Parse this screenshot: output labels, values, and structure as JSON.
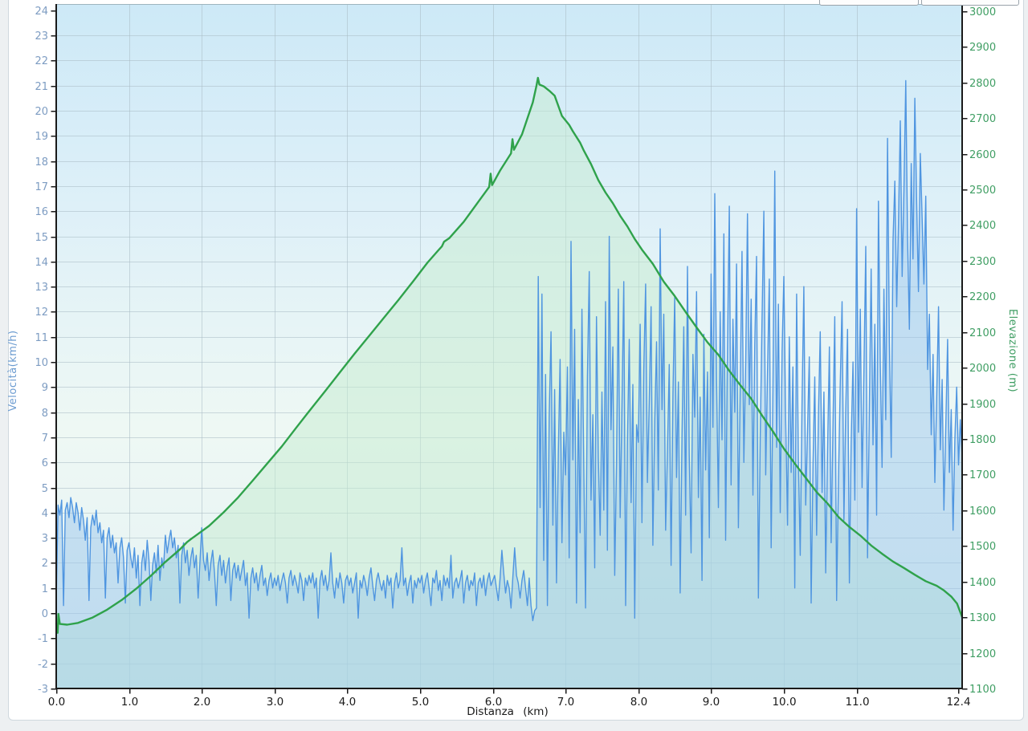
{
  "page": {
    "background": "#edf0f2",
    "panel_background": "#ffffff",
    "panel_border": "#cfd8de"
  },
  "toolbar": {
    "cropped_buttons": [
      {
        "name": "cropped-toolbar-button-1"
      },
      {
        "name": "cropped-toolbar-button-2"
      }
    ]
  },
  "chart_data": {
    "type": "line",
    "title": "",
    "x_axis": {
      "title": "Distanza (km)",
      "range": [
        0,
        12.45
      ],
      "ticks": [
        0,
        1,
        2,
        3,
        4,
        5,
        6,
        7,
        8,
        9,
        10,
        11,
        12.4
      ],
      "tick_labels": [
        "0.0",
        "1.0",
        "2.0",
        "3.0",
        "4.0",
        "5.0",
        "6.0",
        "7.0",
        "8.0",
        "9.0",
        "10.0",
        "11.0",
        "12.4"
      ],
      "tick_color": "#1a1a1a",
      "title_color": "#1a1a1a"
    },
    "left_axis": {
      "title": "Velocità(km/h)",
      "range": [
        -3,
        24.25
      ],
      "ticks": [
        -3,
        -2,
        -1,
        0,
        1,
        2,
        3,
        4,
        5,
        6,
        7,
        8,
        9,
        10,
        11,
        12,
        13,
        14,
        15,
        16,
        17,
        18,
        19,
        20,
        21,
        22,
        23,
        24
      ],
      "tick_color": "#7d9cc2",
      "title_color": "#6b9bd0"
    },
    "right_axis": {
      "title": "Elevazione (m)",
      "range": [
        1100,
        3020
      ],
      "ticks": [
        1100,
        1200,
        1300,
        1400,
        1500,
        1600,
        1700,
        1800,
        1900,
        2000,
        2100,
        2200,
        2300,
        2400,
        2500,
        2600,
        2700,
        2800,
        2900,
        3000
      ],
      "tick_color": "#3f9e63",
      "title_color": "#3f9e63"
    },
    "grid": {
      "on": true,
      "color": "#a9bcc4",
      "opacity": 0.55,
      "top_edge_color": "#9db4be"
    },
    "axis_line_color": "#1a1a1a",
    "plot_bg_gradient": [
      "#cde9f7",
      "#def0f8",
      "#eef8f4",
      "#e3f1f3"
    ],
    "legend": {
      "visible": false
    },
    "series": [
      {
        "name": "Elevazione",
        "axis": "right",
        "color": "#2fa24b",
        "fill": "rgba(198,236,208,0.5)",
        "width": 2.4,
        "points": [
          [
            0.0,
            1283
          ],
          [
            0.02,
            1256
          ],
          [
            0.03,
            1309
          ],
          [
            0.05,
            1281
          ],
          [
            0.15,
            1279
          ],
          [
            0.3,
            1284
          ],
          [
            0.5,
            1299
          ],
          [
            0.7,
            1321
          ],
          [
            0.9,
            1348
          ],
          [
            1.1,
            1380
          ],
          [
            1.3,
            1416
          ],
          [
            1.5,
            1455
          ],
          [
            1.7,
            1490
          ],
          [
            1.8,
            1511
          ],
          [
            1.85,
            1519
          ],
          [
            1.9,
            1526
          ],
          [
            2.1,
            1556
          ],
          [
            2.3,
            1594
          ],
          [
            2.5,
            1636
          ],
          [
            2.7,
            1683
          ],
          [
            2.9,
            1731
          ],
          [
            3.1,
            1779
          ],
          [
            3.3,
            1832
          ],
          [
            3.5,
            1884
          ],
          [
            3.7,
            1935
          ],
          [
            3.9,
            1987
          ],
          [
            4.1,
            2039
          ],
          [
            4.3,
            2089
          ],
          [
            4.5,
            2139
          ],
          [
            4.7,
            2189
          ],
          [
            4.9,
            2241
          ],
          [
            5.1,
            2294
          ],
          [
            5.25,
            2329
          ],
          [
            5.3,
            2340
          ],
          [
            5.33,
            2353
          ],
          [
            5.4,
            2363
          ],
          [
            5.6,
            2409
          ],
          [
            5.8,
            2465
          ],
          [
            5.95,
            2507
          ],
          [
            5.97,
            2544
          ],
          [
            5.99,
            2512
          ],
          [
            6.1,
            2553
          ],
          [
            6.25,
            2601
          ],
          [
            6.27,
            2641
          ],
          [
            6.29,
            2611
          ],
          [
            6.4,
            2654
          ],
          [
            6.55,
            2744
          ],
          [
            6.6,
            2791
          ],
          [
            6.62,
            2813
          ],
          [
            6.64,
            2794
          ],
          [
            6.7,
            2789
          ],
          [
            6.78,
            2776
          ],
          [
            6.85,
            2763
          ],
          [
            6.95,
            2706
          ],
          [
            7.05,
            2681
          ],
          [
            7.1,
            2663
          ],
          [
            7.2,
            2631
          ],
          [
            7.25,
            2609
          ],
          [
            7.35,
            2571
          ],
          [
            7.45,
            2526
          ],
          [
            7.55,
            2491
          ],
          [
            7.65,
            2461
          ],
          [
            7.75,
            2426
          ],
          [
            7.85,
            2396
          ],
          [
            7.95,
            2361
          ],
          [
            8.05,
            2331
          ],
          [
            8.2,
            2291
          ],
          [
            8.35,
            2241
          ],
          [
            8.5,
            2201
          ],
          [
            8.65,
            2156
          ],
          [
            8.8,
            2113
          ],
          [
            8.95,
            2071
          ],
          [
            9.1,
            2036
          ],
          [
            9.25,
            1991
          ],
          [
            9.4,
            1951
          ],
          [
            9.55,
            1913
          ],
          [
            9.7,
            1866
          ],
          [
            9.85,
            1821
          ],
          [
            10.0,
            1773
          ],
          [
            10.15,
            1731
          ],
          [
            10.3,
            1691
          ],
          [
            10.45,
            1651
          ],
          [
            10.6,
            1619
          ],
          [
            10.75,
            1581
          ],
          [
            10.9,
            1553
          ],
          [
            11.05,
            1529
          ],
          [
            11.2,
            1501
          ],
          [
            11.35,
            1478
          ],
          [
            11.5,
            1456
          ],
          [
            11.65,
            1438
          ],
          [
            11.8,
            1419
          ],
          [
            11.95,
            1401
          ],
          [
            12.1,
            1388
          ],
          [
            12.2,
            1375
          ],
          [
            12.3,
            1358
          ],
          [
            12.38,
            1338
          ],
          [
            12.45,
            1300
          ]
        ]
      },
      {
        "name": "Velocità",
        "axis": "left",
        "color": "#4f95e0",
        "fill": "rgba(148,196,238,0.45)",
        "width": 1.4,
        "x0": 0,
        "dx": 0.025,
        "values": [
          0.4,
          4.3,
          3.9,
          4.5,
          0.3,
          4.1,
          4.4,
          3.8,
          4.6,
          4.2,
          3.6,
          4.4,
          4.0,
          3.3,
          4.2,
          3.7,
          2.9,
          3.8,
          0.5,
          3.4,
          3.9,
          3.5,
          4.1,
          3.2,
          3.6,
          2.8,
          3.3,
          0.6,
          3.0,
          3.4,
          2.6,
          3.1,
          2.4,
          2.8,
          1.2,
          2.6,
          3.0,
          2.2,
          0.4,
          2.5,
          2.8,
          2.2,
          1.8,
          2.6,
          1.4,
          2.3,
          0.3,
          2.0,
          2.5,
          1.7,
          2.9,
          2.1,
          0.5,
          1.9,
          2.4,
          1.6,
          2.7,
          1.3,
          2.2,
          1.8,
          3.1,
          2.4,
          2.9,
          3.3,
          2.6,
          3.0,
          2.2,
          2.7,
          0.4,
          2.3,
          2.8,
          2.0,
          2.5,
          1.5,
          2.2,
          2.6,
          1.8,
          2.3,
          0.6,
          2.0,
          3.4,
          2.1,
          1.7,
          2.4,
          1.3,
          2.0,
          2.5,
          1.6,
          0.3,
          1.9,
          2.3,
          1.5,
          2.1,
          1.2,
          1.8,
          2.2,
          0.5,
          1.7,
          2.0,
          1.4,
          1.9,
          1.3,
          1.7,
          2.1,
          1.1,
          1.6,
          -0.2,
          1.4,
          1.8,
          1.2,
          1.6,
          0.9,
          1.5,
          1.9,
          1.1,
          1.4,
          0.7,
          1.3,
          1.6,
          1.0,
          1.4,
          1.1,
          1.5,
          0.9,
          1.3,
          1.6,
          1.2,
          0.4,
          1.4,
          1.7,
          1.1,
          1.5,
          1.2,
          0.8,
          1.6,
          1.3,
          0.5,
          1.4,
          1.1,
          1.5,
          1.2,
          1.6,
          1.0,
          1.4,
          -0.2,
          1.3,
          1.7,
          1.1,
          1.5,
          0.9,
          1.3,
          2.4,
          1.2,
          0.6,
          1.4,
          1.0,
          1.6,
          1.2,
          0.4,
          1.3,
          1.5,
          1.1,
          1.4,
          0.8,
          1.2,
          1.6,
          -0.2,
          1.3,
          1.0,
          1.5,
          1.2,
          0.7,
          1.4,
          1.8,
          1.1,
          0.5,
          1.3,
          1.6,
          1.2,
          0.9,
          1.3,
          0.6,
          1.5,
          1.1,
          1.4,
          0.2,
          1.2,
          1.6,
          1.0,
          1.3,
          2.6,
          1.1,
          1.4,
          0.7,
          1.2,
          1.5,
          0.4,
          1.3,
          1.0,
          1.4,
          1.2,
          1.5,
          0.8,
          1.3,
          1.6,
          1.0,
          0.3,
          1.4,
          1.2,
          1.7,
          0.9,
          1.3,
          0.5,
          1.5,
          1.1,
          1.4,
          1.0,
          2.3,
          0.6,
          1.2,
          1.4,
          1.0,
          1.3,
          1.7,
          0.4,
          1.2,
          1.5,
          0.9,
          1.3,
          1.1,
          1.6,
          0.3,
          1.2,
          1.4,
          1.0,
          1.5,
          0.7,
          1.3,
          1.6,
          1.1,
          1.3,
          1.5,
          1.0,
          0.5,
          1.4,
          2.5,
          1.6,
          0.8,
          1.3,
          1.0,
          0.2,
          1.4,
          2.6,
          1.5,
          1.2,
          0.6,
          1.3,
          1.7,
          1.0,
          0.3,
          1.4,
          0.3,
          -0.3,
          0.1,
          0.2,
          13.4,
          4.2,
          12.7,
          2.1,
          9.5,
          0.3,
          7.8,
          11.2,
          3.5,
          8.9,
          1.2,
          6.4,
          10.1,
          2.8,
          7.2,
          5.5,
          9.8,
          2.2,
          14.8,
          6.1,
          11.3,
          0.4,
          8.5,
          3.2,
          12.1,
          5.8,
          0.2,
          9.4,
          13.6,
          4.5,
          7.9,
          1.8,
          11.8,
          6.2,
          3.1,
          8.8,
          4.1,
          12.4,
          2.5,
          15.0,
          7.3,
          10.6,
          1.5,
          5.9,
          12.9,
          3.8,
          8.2,
          13.2,
          0.3,
          6.7,
          10.9,
          4.4,
          9.1,
          -0.2,
          7.5,
          6.8,
          11.5,
          3.6,
          9.7,
          13.1,
          5.2,
          8.4,
          12.2,
          2.7,
          7.6,
          10.8,
          4.9,
          15.3,
          8.1,
          11.9,
          3.3,
          6.5,
          9.9,
          1.9,
          8.7,
          12.6,
          5.4,
          9.2,
          0.8,
          7.1,
          11.4,
          3.9,
          13.8,
          6.3,
          2.4,
          10.3,
          7.8,
          12.8,
          4.6,
          8.6,
          1.3,
          11.1,
          5.7,
          9.6,
          3.0,
          13.5,
          7.4,
          16.7,
          9.3,
          4.2,
          12.0,
          6.9,
          15.1,
          2.9,
          10.5,
          16.2,
          5.1,
          11.7,
          8.0,
          13.9,
          3.4,
          9.0,
          14.4,
          6.0,
          10.0,
          15.9,
          8.3,
          12.5,
          4.7,
          10.7,
          14.2,
          0.6,
          7.0,
          11.6,
          16.0,
          5.5,
          9.5,
          13.3,
          2.6,
          8.9,
          17.6,
          6.6,
          12.3,
          4.0,
          10.4,
          13.4,
          7.7,
          3.5,
          11.0,
          5.6,
          9.8,
          1.0,
          12.7,
          6.1,
          2.3,
          8.5,
          13.0,
          4.3,
          7.3,
          10.2,
          0.4,
          5.9,
          9.4,
          3.1,
          7.9,
          11.2,
          4.8,
          8.8,
          1.6,
          6.4,
          10.6,
          2.8,
          7.5,
          11.8,
          0.5,
          5.3,
          9.1,
          12.4,
          3.7,
          8.0,
          11.3,
          1.2,
          6.8,
          10.0,
          4.5,
          16.1,
          7.2,
          12.1,
          5.0,
          9.6,
          14.6,
          2.2,
          8.3,
          13.7,
          6.7,
          11.5,
          3.9,
          16.4,
          9.9,
          5.8,
          12.9,
          7.7,
          18.9,
          10.8,
          6.2,
          14.8,
          17.2,
          12.2,
          15.5,
          19.6,
          13.4,
          16.8,
          21.2,
          15.0,
          11.3,
          17.9,
          14.1,
          20.5,
          16.3,
          12.8,
          18.3,
          15.7,
          13.1,
          16.6,
          9.7,
          11.9,
          7.1,
          10.3,
          5.2,
          8.6,
          12.2,
          6.5,
          9.3,
          4.1,
          7.4,
          10.9,
          5.6,
          8.1,
          3.3,
          6.9,
          9.0,
          5.9,
          7.7,
          6.2
        ]
      }
    ]
  }
}
